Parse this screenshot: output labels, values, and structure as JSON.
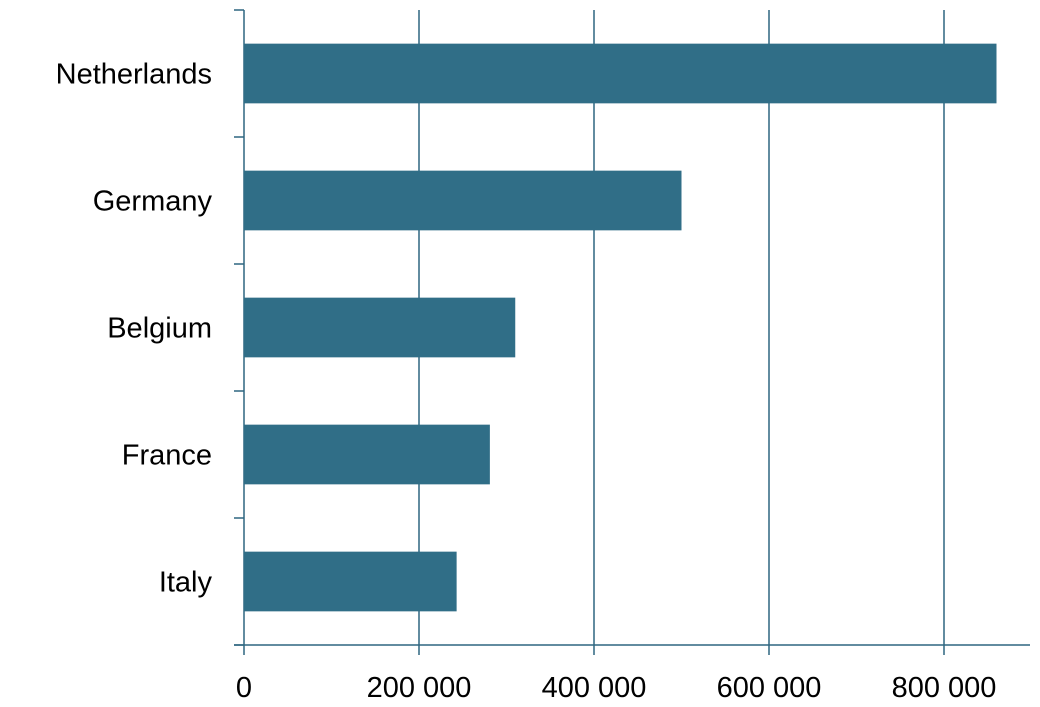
{
  "chart_data": {
    "type": "bar",
    "orientation": "horizontal",
    "categories": [
      "Netherlands",
      "Germany",
      "Belgium",
      "France",
      "Italy"
    ],
    "values": [
      860000,
      500000,
      310000,
      281000,
      243000
    ],
    "title": "",
    "xlabel": "",
    "ylabel": "",
    "xlim": [
      0,
      900000
    ],
    "xticks": [
      0,
      200000,
      400000,
      600000,
      800000
    ],
    "xtick_labels": [
      "0",
      "200 000",
      "400 000",
      "600 000",
      "800 000"
    ],
    "grid": "vertical",
    "legend": "none",
    "colors": {
      "bar": "#306e87",
      "grid": "#2e6680",
      "text": "#000000"
    }
  }
}
